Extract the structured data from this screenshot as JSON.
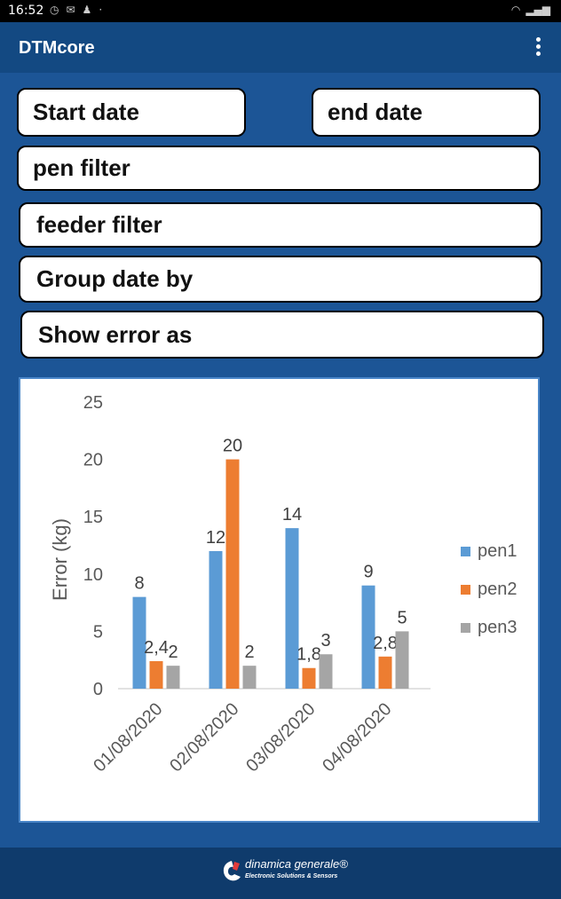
{
  "status_bar": {
    "time": "16:52"
  },
  "app_bar": {
    "title": "DTMcore"
  },
  "filters": {
    "start_date": "Start date",
    "end_date": "end date",
    "pen_filter": "pen filter",
    "feeder_filter": "feeder filter",
    "group_date_by": "Group date by",
    "show_error_as": "Show error as"
  },
  "chart_data": {
    "type": "bar",
    "categories": [
      "01/08/2020",
      "02/08/2020",
      "03/08/2020",
      "04/08/2020"
    ],
    "series": [
      {
        "name": "pen1",
        "values": [
          8,
          12,
          14,
          9
        ],
        "labels": [
          "8",
          "12",
          "14",
          "9"
        ],
        "color": "#5b9bd5"
      },
      {
        "name": "pen2",
        "values": [
          2.4,
          20,
          1.8,
          2.8
        ],
        "labels": [
          "2,4",
          "20",
          "1,8",
          "2,8"
        ],
        "color": "#ed7d31"
      },
      {
        "name": "pen3",
        "values": [
          2,
          2,
          3,
          5
        ],
        "labels": [
          "2",
          "2",
          "3",
          "5"
        ],
        "color": "#a5a5a5"
      }
    ],
    "ylabel": "Error (kg)",
    "ylim": [
      0,
      25
    ],
    "yticks": [
      "0",
      "5",
      "10",
      "15",
      "20",
      "25"
    ],
    "grid": false,
    "legend": "right"
  },
  "footer": {
    "brand": "dinamica generale®",
    "tagline": "Electronic Solutions & Sensors"
  }
}
